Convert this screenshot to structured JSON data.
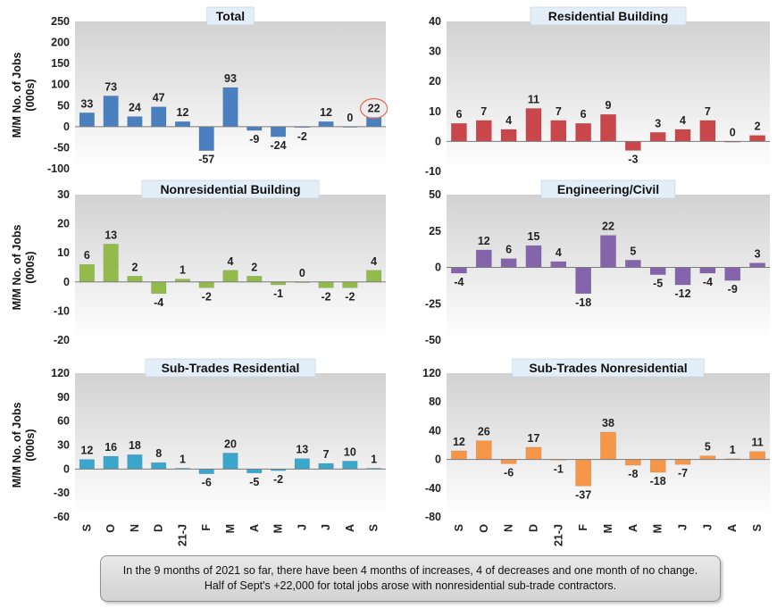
{
  "categories": [
    "S",
    "O",
    "N",
    "D",
    "21-J",
    "F",
    "M",
    "A",
    "M",
    "J",
    "J",
    "A",
    "S"
  ],
  "ylabel": "M/M No. of Jobs (000s)",
  "chart_data": [
    {
      "type": "bar",
      "title": "Total",
      "color": "#4a80c0",
      "ylim": [
        -100,
        250
      ],
      "ticks": [
        -100,
        -50,
        0,
        50,
        100,
        150,
        200,
        250
      ],
      "tick_labels": [
        "-100",
        "-50",
        "0",
        "50",
        "100",
        "150",
        "200",
        "250"
      ],
      "values": [
        33,
        73,
        24,
        47,
        12,
        -57,
        93,
        -9,
        -24,
        -2,
        12,
        0,
        22
      ],
      "highlight_index": 12
    },
    {
      "type": "bar",
      "title": "Residential Building",
      "color": "#c9474b",
      "ylim": [
        -10,
        40
      ],
      "ticks": [
        -10,
        0,
        10,
        20,
        30,
        40
      ],
      "tick_labels": [
        "-10",
        "0",
        "10",
        "20",
        "30",
        "40"
      ],
      "values": [
        6,
        7,
        4,
        11,
        7,
        6,
        9,
        -3,
        3,
        4,
        7,
        0,
        2
      ]
    },
    {
      "type": "bar",
      "title": "Nonresidential Building",
      "color": "#93bb4c",
      "ylim": [
        -20,
        30
      ],
      "ticks": [
        -20,
        -10,
        0,
        10,
        20,
        30
      ],
      "tick_labels": [
        "-20",
        "-10",
        "0",
        "10",
        "20",
        "30"
      ],
      "values": [
        6,
        13,
        2,
        -4,
        1,
        -2,
        4,
        2,
        -1,
        0,
        -2,
        -2,
        4
      ]
    },
    {
      "type": "bar",
      "title": "Engineering/Civil",
      "color": "#8465ac",
      "ylim": [
        -50,
        50
      ],
      "ticks": [
        -50,
        -25,
        0,
        25,
        50
      ],
      "tick_labels": [
        "-50",
        "-25",
        "0",
        "25",
        "50"
      ],
      "values": [
        -4,
        12,
        6,
        15,
        4,
        -18,
        22,
        5,
        -5,
        -12,
        -4,
        -9,
        3
      ]
    },
    {
      "type": "bar",
      "title": "Sub-Trades Residential",
      "color": "#3aa6cc",
      "ylim": [
        -60,
        120
      ],
      "ticks": [
        -60,
        -30,
        0,
        30,
        60,
        90,
        120
      ],
      "tick_labels": [
        "-60",
        "-30",
        "0",
        "30",
        "60",
        "90",
        "120"
      ],
      "values": [
        12,
        16,
        18,
        8,
        1,
        -6,
        20,
        -5,
        -2,
        13,
        7,
        10,
        1
      ]
    },
    {
      "type": "bar",
      "title": "Sub-Trades Nonresidential",
      "color": "#f59648",
      "ylim": [
        -80,
        120
      ],
      "ticks": [
        -80,
        -40,
        0,
        40,
        80,
        120
      ],
      "tick_labels": [
        "-80",
        "-40",
        "0",
        "40",
        "80",
        "120"
      ],
      "values": [
        12,
        26,
        -6,
        17,
        -1,
        -37,
        38,
        -8,
        -18,
        -7,
        5,
        1,
        11
      ]
    }
  ],
  "caption": {
    "line1": "In the 9 months of 2021 so far, there have been 4 months of increases, 4 of decreases and one month of no change.",
    "line2": "Half of Sept's +22,000 for total jobs arose with nonresidential sub-trade contractors."
  }
}
